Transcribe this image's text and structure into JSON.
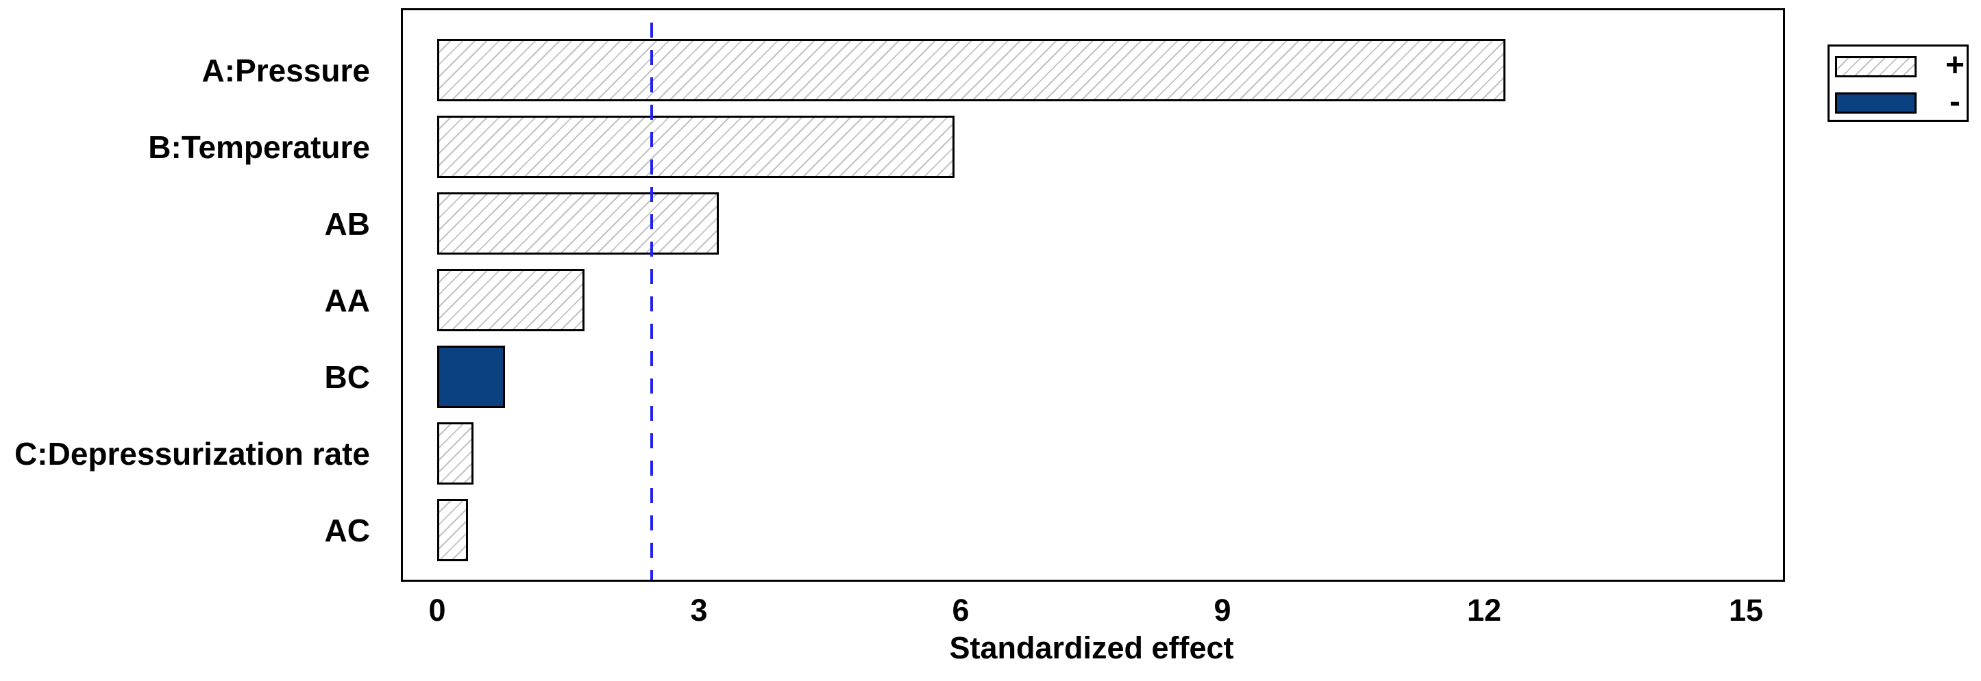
{
  "chart_data": {
    "type": "bar",
    "orientation": "horizontal",
    "title": "",
    "xlabel": "Standardized effect",
    "ylabel": "",
    "categories": [
      "A:Pressure",
      "B:Temperature",
      "AB",
      "AA",
      "BC",
      "C:Depressurization rate",
      "AC"
    ],
    "series": [
      {
        "name": "Standardized effect",
        "values": [
          12.24,
          5.93,
          3.23,
          1.69,
          0.78,
          0.42,
          0.35
        ],
        "signs": [
          "+",
          "+",
          "+",
          "+",
          "-",
          "+",
          "+"
        ]
      }
    ],
    "xlim": [
      0,
      15.5
    ],
    "xticks": [
      "0",
      "3",
      "6",
      "9",
      "12",
      "15"
    ],
    "reference_line_x": 2.46,
    "grid": "off",
    "legend_position": "outside-top-right",
    "legend": [
      {
        "label": "+",
        "swatch": "hatched-white"
      },
      {
        "label": "-",
        "swatch": "solid-blue"
      }
    ],
    "colors": {
      "negative_bar_fill": "#0b4180",
      "hatch_line": "#c2c2c2",
      "bar_border": "#000000",
      "reference_line": "#2323ee",
      "frame": "#000000",
      "text": "#000000",
      "background": "#ffffff"
    }
  }
}
